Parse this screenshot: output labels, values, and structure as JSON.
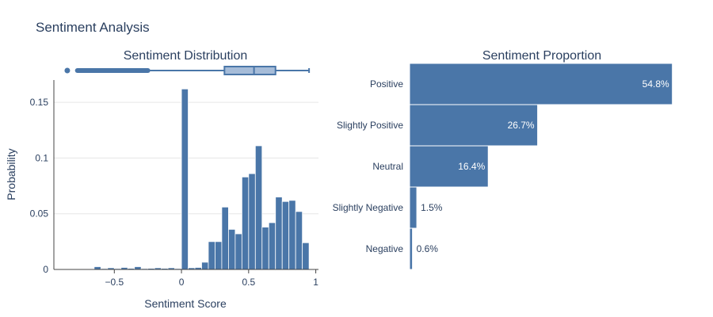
{
  "figure_title": "Sentiment Analysis",
  "colors": {
    "bar": "#4a76a8",
    "bar_edge": "#ffffff",
    "box_fill": "#a6bcd8",
    "grid": "#e6e6e6",
    "text": "#2a3f5f"
  },
  "chart_data": [
    {
      "type": "bar",
      "subtype": "histogram",
      "title": "Sentiment Distribution",
      "xlabel": "Sentiment Score",
      "ylabel": "Probability",
      "xlim": [
        -0.95,
        1.02
      ],
      "ylim": [
        0,
        0.17
      ],
      "xticks": [
        -0.5,
        0,
        0.5,
        1
      ],
      "xtick_labels": [
        "−0.5",
        "0",
        "0.5",
        "1"
      ],
      "yticks": [
        0,
        0.05,
        0.1,
        0.15
      ],
      "ytick_labels": [
        "0",
        "0.05",
        "0.1",
        "0.15"
      ],
      "grid": true,
      "bin_width": 0.05,
      "bins": [
        {
          "x0": -0.8,
          "x1": -0.75,
          "value": 0.0003
        },
        {
          "x0": -0.75,
          "x1": -0.7,
          "value": 0.0004
        },
        {
          "x0": -0.7,
          "x1": -0.65,
          "value": 0.0004
        },
        {
          "x0": -0.65,
          "x1": -0.6,
          "value": 0.0025
        },
        {
          "x0": -0.6,
          "x1": -0.55,
          "value": 0.0008
        },
        {
          "x0": -0.55,
          "x1": -0.5,
          "value": 0.0015
        },
        {
          "x0": -0.5,
          "x1": -0.45,
          "value": 0.0008
        },
        {
          "x0": -0.45,
          "x1": -0.4,
          "value": 0.0018
        },
        {
          "x0": -0.4,
          "x1": -0.35,
          "value": 0.001
        },
        {
          "x0": -0.35,
          "x1": -0.3,
          "value": 0.0025
        },
        {
          "x0": -0.3,
          "x1": -0.25,
          "value": 0.0008
        },
        {
          "x0": -0.25,
          "x1": -0.2,
          "value": 0.001
        },
        {
          "x0": -0.2,
          "x1": -0.15,
          "value": 0.0015
        },
        {
          "x0": -0.15,
          "x1": -0.1,
          "value": 0.001
        },
        {
          "x0": -0.1,
          "x1": -0.05,
          "value": 0.0015
        },
        {
          "x0": -0.05,
          "x1": 0.0,
          "value": 0.0008
        },
        {
          "x0": 0.0,
          "x1": 0.05,
          "value": 0.162
        },
        {
          "x0": 0.05,
          "x1": 0.1,
          "value": 0.0015
        },
        {
          "x0": 0.1,
          "x1": 0.15,
          "value": 0.0018
        },
        {
          "x0": 0.15,
          "x1": 0.2,
          "value": 0.0065
        },
        {
          "x0": 0.2,
          "x1": 0.25,
          "value": 0.025
        },
        {
          "x0": 0.25,
          "x1": 0.3,
          "value": 0.025
        },
        {
          "x0": 0.3,
          "x1": 0.35,
          "value": 0.056
        },
        {
          "x0": 0.35,
          "x1": 0.4,
          "value": 0.036
        },
        {
          "x0": 0.4,
          "x1": 0.45,
          "value": 0.032
        },
        {
          "x0": 0.45,
          "x1": 0.5,
          "value": 0.083
        },
        {
          "x0": 0.5,
          "x1": 0.55,
          "value": 0.086
        },
        {
          "x0": 0.55,
          "x1": 0.6,
          "value": 0.111
        },
        {
          "x0": 0.6,
          "x1": 0.65,
          "value": 0.038
        },
        {
          "x0": 0.65,
          "x1": 0.7,
          "value": 0.042
        },
        {
          "x0": 0.7,
          "x1": 0.75,
          "value": 0.065
        },
        {
          "x0": 0.75,
          "x1": 0.8,
          "value": 0.061
        },
        {
          "x0": 0.8,
          "x1": 0.85,
          "value": 0.062
        },
        {
          "x0": 0.85,
          "x1": 0.9,
          "value": 0.052
        },
        {
          "x0": 0.9,
          "x1": 0.95,
          "value": 0.024
        }
      ],
      "marginal_box": {
        "whisker_low": -0.25,
        "q1": 0.32,
        "median": 0.54,
        "q3": 0.7,
        "whisker_high": 0.95,
        "outlier_range": [
          -0.775,
          -0.25
        ],
        "extreme_outlier": -0.85
      }
    },
    {
      "type": "bar",
      "orientation": "horizontal",
      "title": "Sentiment Proportion",
      "xlim": [
        0,
        57
      ],
      "categories": [
        "Positive",
        "Slightly Positive",
        "Neutral",
        "Slightly Negative",
        "Negative"
      ],
      "values": [
        54.8,
        26.7,
        16.4,
        1.5,
        0.6
      ],
      "labels": [
        "54.8%",
        "26.7%",
        "16.4%",
        "1.5%",
        "0.6%"
      ]
    }
  ]
}
